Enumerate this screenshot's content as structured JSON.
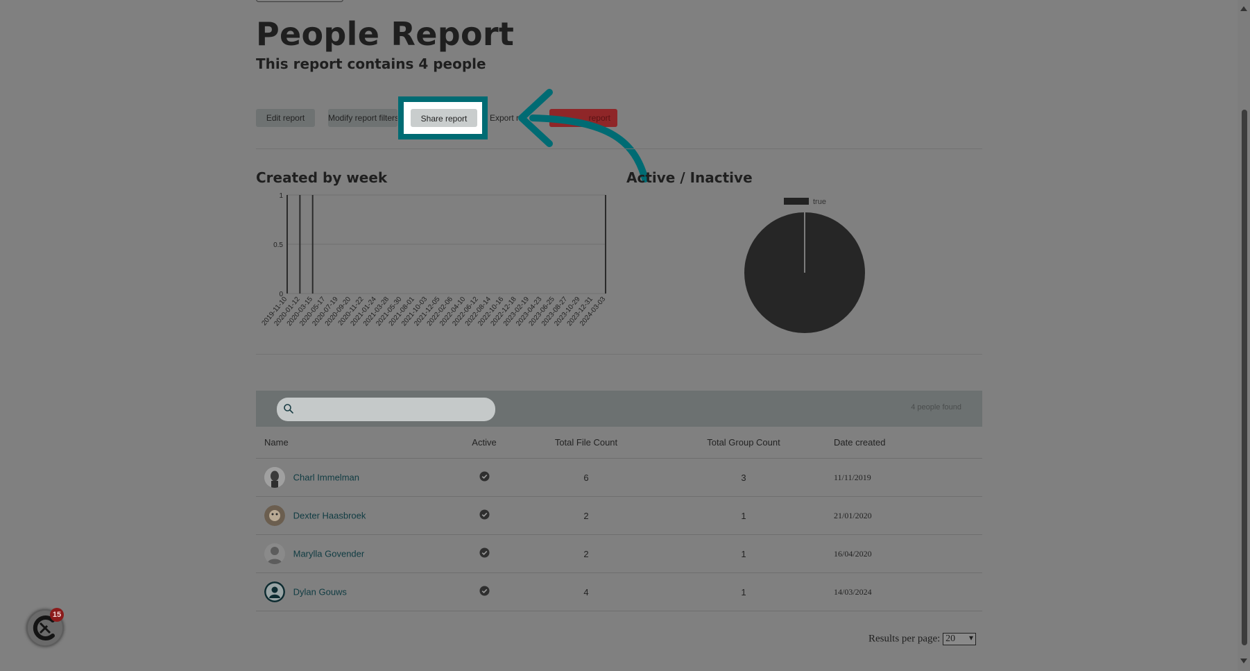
{
  "page": {
    "title": "People Report",
    "subtitle": "This report contains 4 people"
  },
  "actions": {
    "edit_label": "Edit report",
    "modify_label": "Modify report filters",
    "share_label": "Share report",
    "export_label": "Export re",
    "delete_label": "report"
  },
  "charts": {
    "created_title": "Created by week",
    "active_title": "Active / Inactive"
  },
  "chart_data": [
    {
      "type": "bar",
      "title": "Created by week",
      "categories": [
        "2019-11-10",
        "2020-01-12",
        "2020-03-15",
        "2020-05-17",
        "2020-07-19",
        "2020-09-20",
        "2020-11-22",
        "2021-01-24",
        "2021-03-28",
        "2021-05-30",
        "2021-08-01",
        "2021-10-03",
        "2021-12-05",
        "2022-02-06",
        "2022-04-10",
        "2022-06-12",
        "2022-08-14",
        "2022-10-16",
        "2022-12-18",
        "2023-02-19",
        "2023-04-23",
        "2023-06-25",
        "2023-08-27",
        "2023-10-29",
        "2023-12-31",
        "2024-03-03"
      ],
      "bars": [
        {
          "x": "2019-11-10",
          "value": 1
        },
        {
          "x": "2020-01-12",
          "value": 1
        },
        {
          "x": "2020-03-15",
          "value": 1
        },
        {
          "x": "2024-03-03",
          "value": 1
        }
      ],
      "y_ticks": [
        "0",
        "0.5",
        "1"
      ],
      "ylim": [
        0,
        1
      ],
      "grid": true
    },
    {
      "type": "pie",
      "title": "Active / Inactive",
      "legend": [
        "true"
      ],
      "legend_position": "top",
      "slices": [
        {
          "label": "true",
          "value": 4
        }
      ]
    }
  ],
  "table": {
    "search_placeholder": "",
    "found_text": "4 people found",
    "headers": [
      "Name",
      "Active",
      "Total File Count",
      "Total Group Count",
      "Date created"
    ],
    "rows": [
      {
        "name": "Charl Immelman",
        "active": true,
        "files": "6",
        "groups": "3",
        "date": "11/11/2019"
      },
      {
        "name": "Dexter Haasbroek",
        "active": true,
        "files": "2",
        "groups": "1",
        "date": "21/01/2020"
      },
      {
        "name": "Marylla Govender",
        "active": true,
        "files": "2",
        "groups": "1",
        "date": "16/04/2020"
      },
      {
        "name": "Dylan Gouws",
        "active": true,
        "files": "4",
        "groups": "1",
        "date": "14/03/2024"
      }
    ]
  },
  "pagination": {
    "label": "Results per page:",
    "value": "20"
  },
  "chat": {
    "badge_count": "15"
  },
  "colors": {
    "highlight": "#006b73",
    "arrow": "#006b73",
    "delete": "#8f2628",
    "overlay": "#808080"
  }
}
